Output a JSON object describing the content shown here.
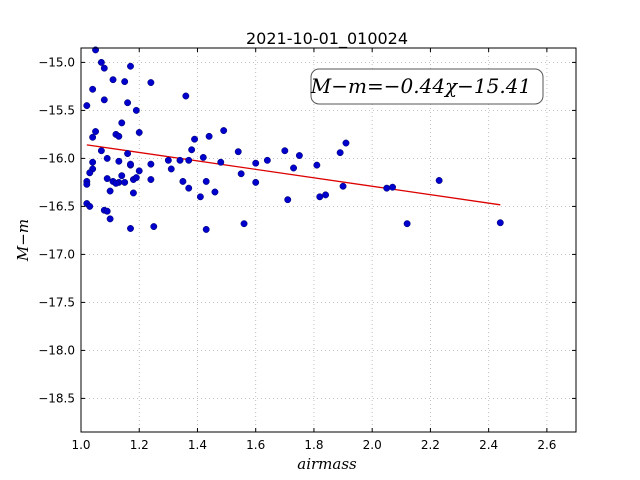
{
  "chart_data": {
    "type": "scatter",
    "title": "2021-10-01_010024",
    "xlabel": "airmass",
    "ylabel": "M−m",
    "xlim": [
      1.0,
      2.7
    ],
    "ylim": [
      -18.85,
      -14.85
    ],
    "y_inverted": true,
    "grid": true,
    "x_ticks": [
      1.0,
      1.2,
      1.4,
      1.6,
      1.8,
      2.0,
      2.2,
      2.4,
      2.6
    ],
    "x_tick_labels": [
      "1.0",
      "1.2",
      "1.4",
      "1.6",
      "1.8",
      "2.0",
      "2.2",
      "2.4",
      "2.6"
    ],
    "y_ticks": [
      -15.0,
      -15.5,
      -16.0,
      -16.5,
      -17.0,
      -17.5,
      -18.0,
      -18.5
    ],
    "y_tick_labels": [
      "−15.0",
      "−15.5",
      "−16.0",
      "−16.5",
      "−17.0",
      "−17.5",
      "−18.0",
      "−18.5"
    ],
    "annotation": "M−m=−0.44χ−15.41",
    "annotation_placement": "top-right",
    "colors": {
      "points": "#0000cc",
      "fit_line": "#dd0000",
      "grid": "#b0b0b0"
    },
    "fit": {
      "slope": -0.44,
      "intercept": -15.41,
      "x_range": [
        1.02,
        2.44
      ]
    },
    "series": [
      {
        "x": [
          1.05,
          1.07,
          1.04,
          1.08,
          1.11,
          1.15,
          1.17,
          1.24,
          1.02,
          1.08,
          1.16,
          1.36,
          1.19,
          1.14,
          1.05,
          1.04,
          1.12,
          1.13,
          1.2,
          1.09,
          1.39,
          1.44,
          1.49,
          1.13,
          1.17,
          1.04,
          1.07,
          1.16,
          1.38,
          1.54,
          1.7,
          1.75,
          1.91,
          1.89,
          1.04,
          1.09,
          1.14,
          1.13,
          1.18,
          1.3,
          1.34,
          1.24,
          1.42,
          1.48,
          1.6,
          1.64,
          1.81,
          1.03,
          1.17,
          1.2,
          1.31,
          1.37,
          1.73,
          1.02,
          1.11,
          1.15,
          1.19,
          1.12,
          1.24,
          1.35,
          1.43,
          1.55,
          1.6,
          1.02,
          1.1,
          1.18,
          1.37,
          1.41,
          1.46,
          2.23,
          2.07,
          2.05,
          1.9,
          1.84,
          1.82,
          1.71,
          1.02,
          1.03,
          1.08,
          1.09,
          1.1,
          1.17,
          1.25,
          1.43,
          1.56,
          2.12,
          2.44
        ],
        "y": [
          -14.87,
          -15.0,
          -15.28,
          -15.06,
          -15.18,
          -15.2,
          -15.04,
          -15.21,
          -15.45,
          -15.39,
          -15.42,
          -15.35,
          -15.5,
          -15.63,
          -15.72,
          -15.78,
          -15.75,
          -15.77,
          -15.73,
          -16.0,
          -15.8,
          -15.77,
          -15.71,
          -16.03,
          -16.07,
          -16.04,
          -15.92,
          -15.95,
          -15.91,
          -15.93,
          -15.92,
          -15.97,
          -15.84,
          -15.94,
          -16.11,
          -16.21,
          -16.18,
          -16.25,
          -16.22,
          -16.02,
          -16.02,
          -16.06,
          -15.99,
          -16.04,
          -16.05,
          -16.02,
          -16.07,
          -16.15,
          -16.06,
          -16.13,
          -16.11,
          -16.02,
          -16.1,
          -16.24,
          -16.24,
          -16.25,
          -16.2,
          -16.26,
          -16.22,
          -16.24,
          -16.24,
          -16.16,
          -16.25,
          -16.27,
          -16.34,
          -16.36,
          -16.31,
          -16.4,
          -16.35,
          -16.23,
          -16.3,
          -16.31,
          -16.29,
          -16.38,
          -16.4,
          -16.43,
          -16.47,
          -16.5,
          -16.54,
          -16.55,
          -16.63,
          -16.73,
          -16.71,
          -16.74,
          -16.68,
          -16.68,
          -16.67
        ]
      }
    ]
  }
}
